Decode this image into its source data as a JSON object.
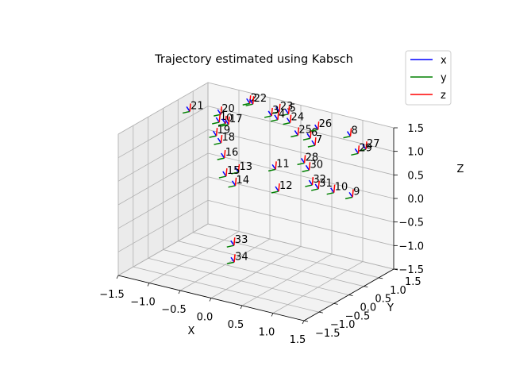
{
  "chart_data": {
    "type": "scatter",
    "title": "Trajectory estimated using Kabsch",
    "xlabel": "X",
    "ylabel": "Y",
    "zlabel": "Z",
    "xticks": [
      "−1.5",
      "−1.0",
      "−0.5",
      "0.0",
      "0.5",
      "1.0",
      "1.5"
    ],
    "yticks": [
      "−1.5",
      "−1.0",
      "−0.5",
      "0.0",
      "0.5",
      "1.0",
      "1.5"
    ],
    "zticks": [
      "−1.5",
      "−1.0",
      "−0.5",
      "0.0",
      "0.5",
      "1.0",
      "1.5"
    ],
    "xlim": [
      -1.5,
      1.5
    ],
    "ylim": [
      -1.5,
      1.5
    ],
    "zlim": [
      -1.5,
      1.5
    ],
    "grid": true,
    "legend": {
      "placement": "top-right",
      "entries": [
        {
          "name": "x",
          "color": "#0000ff"
        },
        {
          "name": "y",
          "color": "#008000"
        },
        {
          "name": "z",
          "color": "#ff0000"
        }
      ]
    },
    "points": [
      {
        "label": "2",
        "x": -0.8,
        "y": 1.45,
        "z": 1.3
      },
      {
        "label": "22",
        "x": -0.75,
        "y": 1.45,
        "z": 1.3
      },
      {
        "label": "23",
        "x": -0.3,
        "y": 1.4,
        "z": 1.3
      },
      {
        "label": "5",
        "x": -0.15,
        "y": 1.4,
        "z": 1.3
      },
      {
        "label": "3",
        "x": -0.4,
        "y": 1.35,
        "z": 1.2
      },
      {
        "label": "4",
        "x": -0.3,
        "y": 1.35,
        "z": 1.15
      },
      {
        "label": "24",
        "x": -0.1,
        "y": 1.35,
        "z": 1.15
      },
      {
        "label": "25",
        "x": 0.05,
        "y": 1.3,
        "z": 0.95
      },
      {
        "label": "6",
        "x": 0.25,
        "y": 1.3,
        "z": 0.95
      },
      {
        "label": "26",
        "x": 0.35,
        "y": 1.35,
        "z": 1.15
      },
      {
        "label": "8",
        "x": 0.85,
        "y": 1.4,
        "z": 1.15
      },
      {
        "label": "7",
        "x": 0.35,
        "y": 1.25,
        "z": 0.85
      },
      {
        "label": "27",
        "x": 1.1,
        "y": 1.4,
        "z": 0.95
      },
      {
        "label": "29",
        "x": 1.0,
        "y": 1.35,
        "z": 0.85
      },
      {
        "label": "28",
        "x": 0.3,
        "y": 1.0,
        "z": 0.55
      },
      {
        "label": "30",
        "x": 0.4,
        "y": 0.95,
        "z": 0.45
      },
      {
        "label": "32",
        "x": 0.45,
        "y": 0.95,
        "z": 0.15
      },
      {
        "label": "31",
        "x": 0.55,
        "y": 0.95,
        "z": 0.1
      },
      {
        "label": "10",
        "x": 0.8,
        "y": 0.95,
        "z": 0.1
      },
      {
        "label": "9",
        "x": 1.1,
        "y": 0.95,
        "z": 0.1
      },
      {
        "label": "11",
        "x": 0.05,
        "y": 0.55,
        "z": 0.5
      },
      {
        "label": "12",
        "x": 0.1,
        "y": 0.55,
        "z": 0.05
      },
      {
        "label": "13",
        "x": -0.5,
        "y": 0.45,
        "z": 0.3
      },
      {
        "label": "14",
        "x": -0.55,
        "y": 0.45,
        "z": 0.0
      },
      {
        "label": "15",
        "x": -0.7,
        "y": 0.45,
        "z": 0.15
      },
      {
        "label": "16",
        "x": -0.8,
        "y": 0.6,
        "z": 0.45
      },
      {
        "label": "18",
        "x": -0.95,
        "y": 0.8,
        "z": 0.65
      },
      {
        "label": "19",
        "x": -1.05,
        "y": 0.85,
        "z": 0.75
      },
      {
        "label": "20",
        "x": -1.05,
        "y": 1.0,
        "z": 1.15
      },
      {
        "label": "1",
        "x": -1.1,
        "y": 1.05,
        "z": 0.95
      },
      {
        "label": "0",
        "x": -1.0,
        "y": 1.05,
        "z": 0.95
      },
      {
        "label": "17",
        "x": -0.95,
        "y": 1.05,
        "z": 0.95
      },
      {
        "label": "21",
        "x": -1.6,
        "y": 1.1,
        "z": 1.0
      },
      {
        "label": "33",
        "x": -0.5,
        "y": 0.3,
        "z": -1.2
      },
      {
        "label": "34",
        "x": -0.4,
        "y": 0.1,
        "z": -1.45
      }
    ]
  }
}
